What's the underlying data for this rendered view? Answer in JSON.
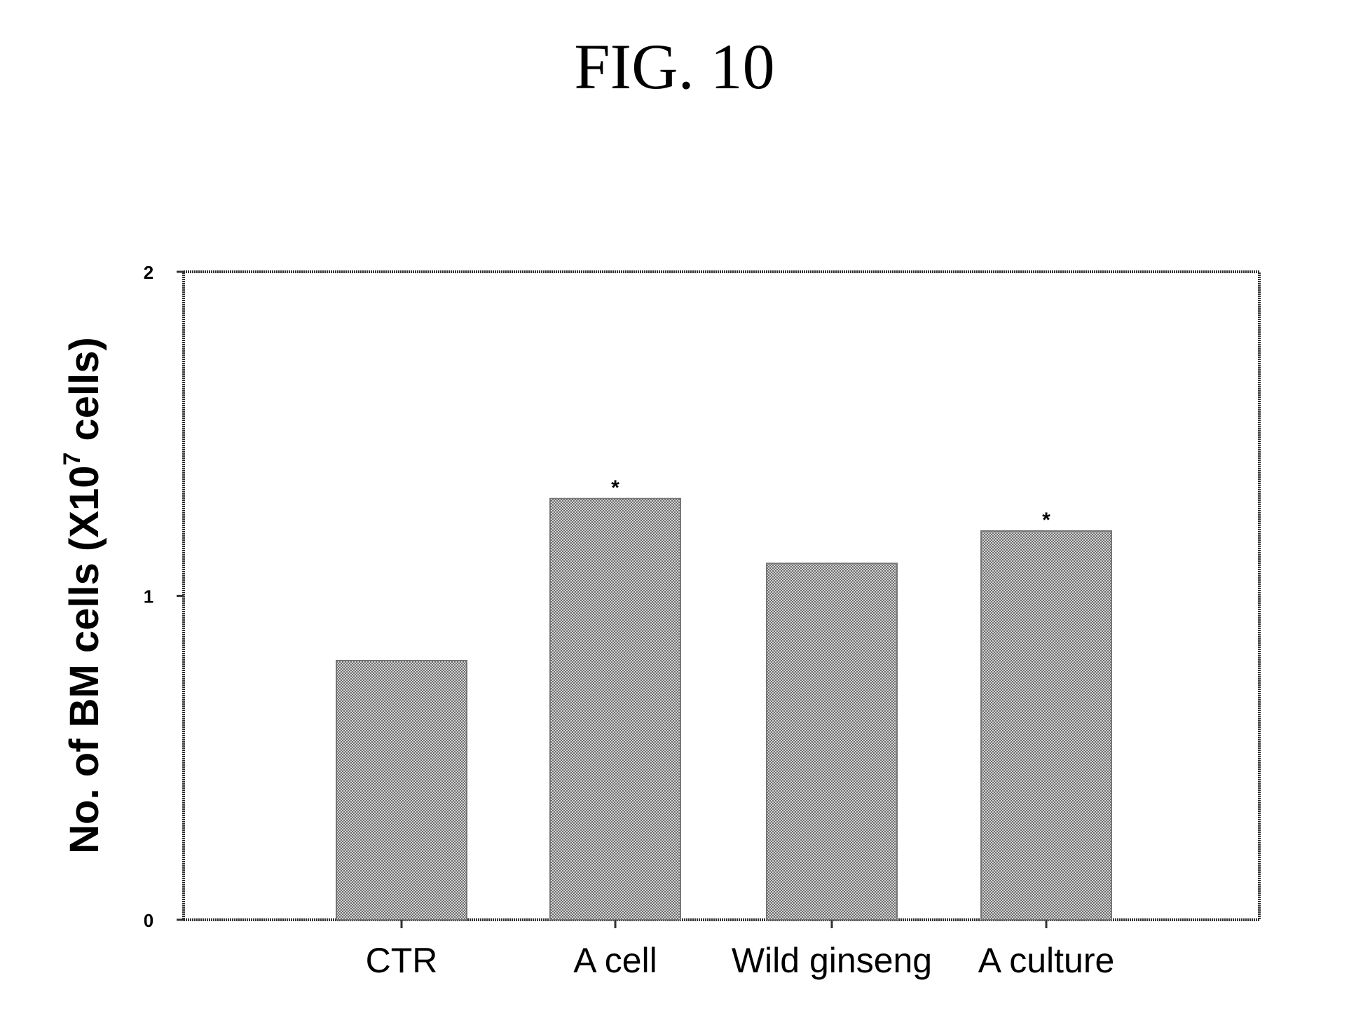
{
  "figure": {
    "label": "FIG. 10"
  },
  "chart_data": {
    "type": "bar",
    "categories": [
      "CTR",
      "A cell",
      "Wild ginseng",
      "A culture"
    ],
    "values": [
      0.8,
      1.3,
      1.1,
      1.2
    ],
    "annotations": [
      "",
      "*",
      "",
      "*"
    ],
    "ylabel": "No. of BM cells (X10",
    "ylabel_superscript": "7",
    "ylabel_suffix": " cells)",
    "xlabel": "",
    "ylim": [
      0,
      2
    ],
    "yticks": [
      "0",
      "1",
      "2"
    ],
    "grid": false,
    "legend": "none",
    "colors": {
      "bar_fill": "#a9a9a9",
      "axis": "#333333"
    }
  }
}
